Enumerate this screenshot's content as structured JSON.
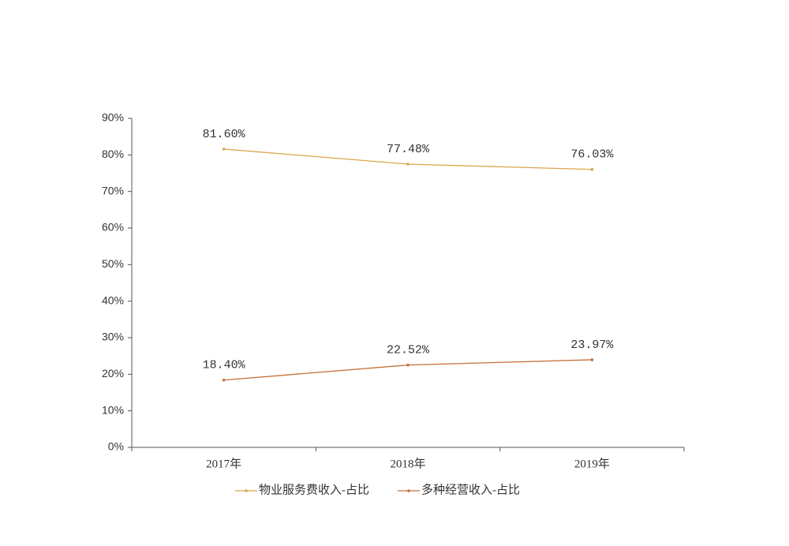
{
  "chart_data": {
    "type": "line",
    "categories": [
      "2017年",
      "2018年",
      "2019年"
    ],
    "series": [
      {
        "name": "物业服务费收入-占比",
        "color": "#d9a74a",
        "values": [
          81.6,
          77.48,
          76.03
        ],
        "value_labels": [
          "81.60%",
          "77.48%",
          "76.03%"
        ]
      },
      {
        "name": "多种经营收入-占比",
        "color": "#c4703a",
        "values": [
          18.4,
          22.52,
          23.97
        ],
        "value_labels": [
          "18.40%",
          "22.52%",
          "23.97%"
        ]
      }
    ],
    "ylim": [
      0,
      90
    ],
    "yticks": [
      {
        "value": 0,
        "label": "0%"
      },
      {
        "value": 10,
        "label": "10%"
      },
      {
        "value": 20,
        "label": "20%"
      },
      {
        "value": 30,
        "label": "30%"
      },
      {
        "value": 40,
        "label": "40%"
      },
      {
        "value": 50,
        "label": "50%"
      },
      {
        "value": 60,
        "label": "60%"
      },
      {
        "value": 70,
        "label": "70%"
      },
      {
        "value": 80,
        "label": "80%"
      },
      {
        "value": 90,
        "label": "90%"
      }
    ],
    "grid": false,
    "legend": "bottom"
  }
}
